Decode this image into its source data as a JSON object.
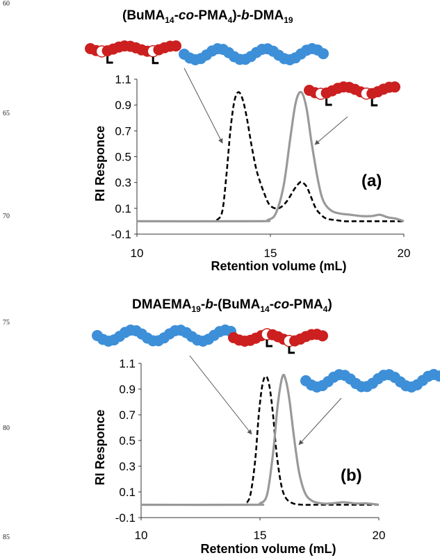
{
  "line_numbers": [
    "60",
    "65",
    "70",
    "75",
    "80",
    "85"
  ],
  "chart_data": [
    {
      "type": "line",
      "title": "(BuMA14-co-PMA4)-b-DMA19",
      "title_parts": {
        "p1": "(BuMA",
        "s1": "14",
        "p2": "-",
        "co": "co",
        "p3": "-PMA",
        "s2": "4",
        "p4": ")-",
        "b": "b",
        "p5": "-DMA",
        "s3": "19"
      },
      "panel_label": "(a)",
      "xlabel": "Retention volume (mL)",
      "ylabel": "RI Responce",
      "xlim": [
        10,
        20
      ],
      "ylim": [
        -0.1,
        1.1
      ],
      "xticks": [
        "10",
        "15",
        "20"
      ],
      "yticks": [
        "1.1",
        "0.9",
        "0.7",
        "0.5",
        "0.3",
        "0.1",
        "-0.1"
      ],
      "series": [
        {
          "style": "dashed",
          "color": "#000000",
          "x": [
            10,
            12.8,
            13.0,
            13.2,
            13.35,
            13.5,
            13.65,
            13.8,
            13.95,
            14.1,
            14.3,
            14.5,
            14.8,
            15.0,
            15.3,
            15.6,
            15.9,
            16.1,
            16.2,
            16.35,
            16.5,
            16.7,
            16.9,
            17.1,
            17.4,
            17.8,
            18.2,
            20
          ],
          "y": [
            0,
            0,
            0.01,
            0.08,
            0.35,
            0.7,
            0.93,
            1.0,
            0.95,
            0.82,
            0.58,
            0.38,
            0.2,
            0.12,
            0.1,
            0.15,
            0.25,
            0.3,
            0.3,
            0.27,
            0.2,
            0.1,
            0.05,
            0.02,
            0.01,
            0,
            0,
            0
          ]
        },
        {
          "style": "solid",
          "color": "#999999",
          "x": [
            10,
            14.5,
            14.9,
            15.2,
            15.5,
            15.75,
            15.95,
            16.15,
            16.35,
            16.55,
            16.8,
            17.0,
            17.3,
            17.6,
            18.0,
            18.4,
            18.8,
            19.1,
            19.4,
            19.7,
            20
          ],
          "y": [
            0,
            0,
            0.01,
            0.06,
            0.28,
            0.65,
            0.92,
            1.0,
            0.88,
            0.6,
            0.3,
            0.15,
            0.08,
            0.06,
            0.05,
            0.04,
            0.04,
            0.05,
            0.03,
            0.02,
            0
          ]
        }
      ]
    },
    {
      "type": "line",
      "title": "DMAEMA19-b-(BuMA14-co-PMA4)",
      "title_parts": {
        "p1": "DMAEMA",
        "s1": "19",
        "p2": "-",
        "b": "b",
        "p3": "-(BuMA",
        "s2": "14",
        "p4": "-",
        "co": "co",
        "p5": "-PMA",
        "s3": "4",
        "p6": ")"
      },
      "panel_label": "(b)",
      "xlabel": "Retention volume (mL)",
      "ylabel": "RI Responce",
      "xlim": [
        10,
        20
      ],
      "ylim": [
        -0.1,
        1.1
      ],
      "xticks": [
        "10",
        "15",
        "20"
      ],
      "yticks": [
        "1.1",
        "0.9",
        "0.7",
        "0.5",
        "0.3",
        "0.1",
        "-0.1"
      ],
      "series": [
        {
          "style": "dashed",
          "color": "#000000",
          "x": [
            10,
            14.2,
            14.4,
            14.6,
            14.8,
            14.95,
            15.1,
            15.25,
            15.4,
            15.55,
            15.7,
            15.9,
            16.1,
            16.4,
            16.8,
            17.3,
            17.8,
            20
          ],
          "y": [
            0,
            0,
            0.01,
            0.08,
            0.35,
            0.7,
            0.93,
            1.0,
            0.92,
            0.7,
            0.4,
            0.15,
            0.05,
            0.01,
            0,
            0,
            0,
            0
          ]
        },
        {
          "style": "solid",
          "color": "#999999",
          "x": [
            10,
            14.7,
            15.0,
            15.3,
            15.55,
            15.75,
            15.95,
            16.1,
            16.25,
            16.45,
            16.65,
            16.9,
            17.2,
            17.6,
            18.0,
            18.5,
            19.0,
            19.5,
            20
          ],
          "y": [
            0,
            0,
            0.01,
            0.08,
            0.4,
            0.78,
            1.0,
            0.96,
            0.8,
            0.5,
            0.25,
            0.09,
            0.03,
            0.01,
            0.01,
            0.02,
            0.01,
            0.01,
            0
          ]
        }
      ]
    }
  ],
  "colors": {
    "red_bead": "#cc1f1f",
    "blue_bead": "#3d8fd8",
    "open_bead": "#ffffff"
  },
  "icons": [
    "copolymer-chain-a",
    "block-copolymer-a",
    "homopolymer-dma-b",
    "block-copolymer-b"
  ]
}
